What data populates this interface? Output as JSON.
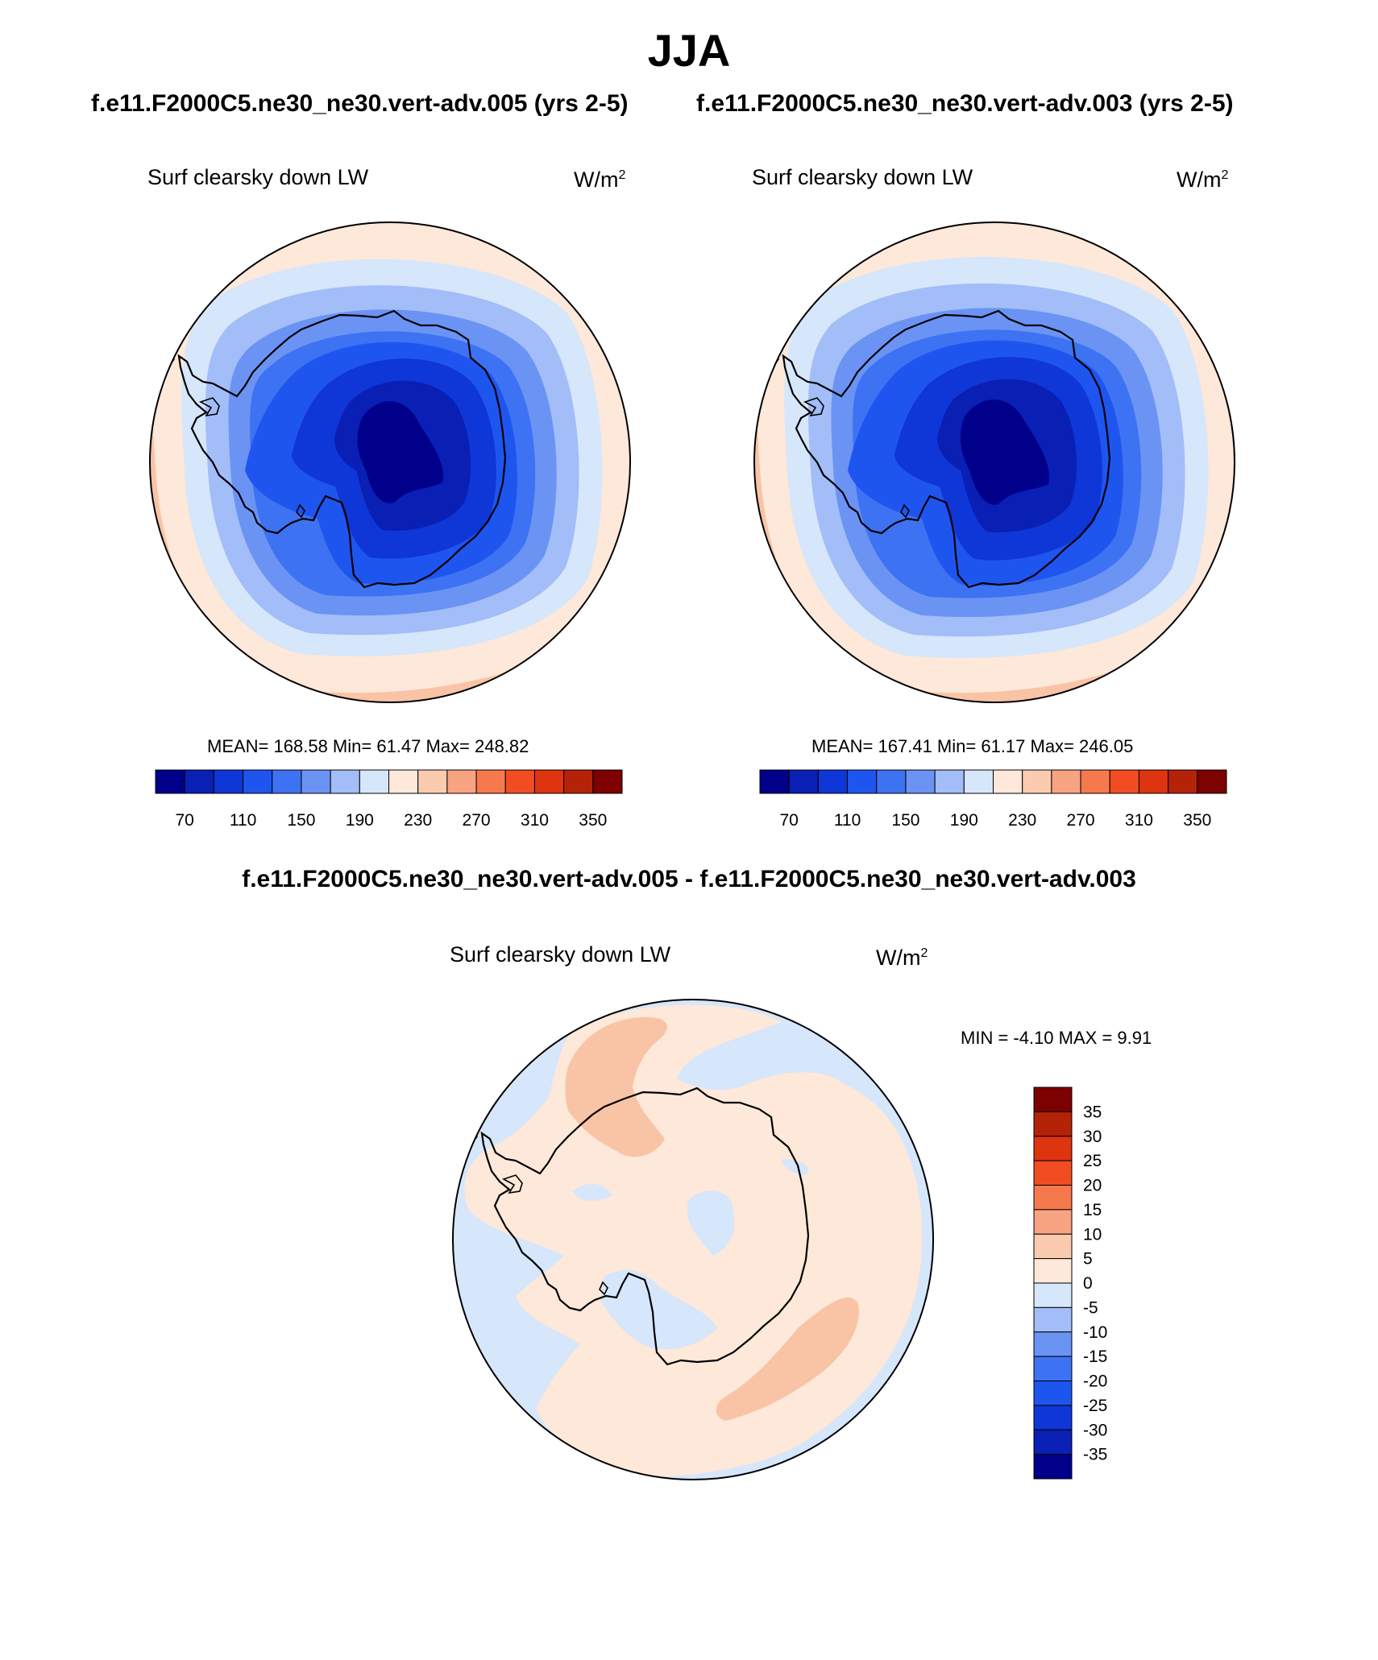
{
  "season": "JJA",
  "panels": [
    {
      "case_title": "f.e11.F2000C5.ne30_ne30.vert-adv.005 (yrs 2-5)",
      "variable": "Surf clearsky down LW",
      "units": "W/m",
      "units_exp": "2",
      "stats": "MEAN= 168.58  Min=  61.47  Max= 248.82"
    },
    {
      "case_title": "f.e11.F2000C5.ne30_ne30.vert-adv.003 (yrs 2-5)",
      "variable": "Surf clearsky down LW",
      "units": "W/m",
      "units_exp": "2",
      "stats": "MEAN= 167.41  Min=  61.17  Max= 246.05"
    }
  ],
  "difference": {
    "title": "f.e11.F2000C5.ne30_ne30.vert-adv.005 - f.e11.F2000C5.ne30_ne30.vert-adv.003",
    "variable": "Surf clearsky down LW",
    "units": "W/m",
    "units_exp": "2",
    "stats": "MIN =  -4.10 MAX =   9.91"
  },
  "colorbar_main": {
    "colors": [
      "#00008b",
      "#0a1fb3",
      "#0f36d6",
      "#1f55ef",
      "#3d73f2",
      "#6a93f4",
      "#a2bdf7",
      "#d6e6fb",
      "#fde8d9",
      "#fbcbb0",
      "#f8a382",
      "#f6794e",
      "#f24d22",
      "#de3410",
      "#b42307",
      "#7c0100"
    ],
    "labels": [
      "70",
      "110",
      "150",
      "190",
      "230",
      "270",
      "310",
      "350"
    ]
  },
  "colorbar_diff": {
    "colors": [
      "#00008b",
      "#0a1fb3",
      "#0f36d6",
      "#1f55ef",
      "#3d73f2",
      "#6a93f4",
      "#a2bdf7",
      "#d6e6fb",
      "#fde8d9",
      "#fbcbb0",
      "#f8a382",
      "#f6794e",
      "#f24d22",
      "#de3410",
      "#b42307",
      "#7c0100"
    ],
    "labels": [
      "-35",
      "-30",
      "-25",
      "-20",
      "-15",
      "-10",
      "-5",
      "0",
      "5",
      "10",
      "15",
      "20",
      "25",
      "30",
      "35"
    ]
  }
}
